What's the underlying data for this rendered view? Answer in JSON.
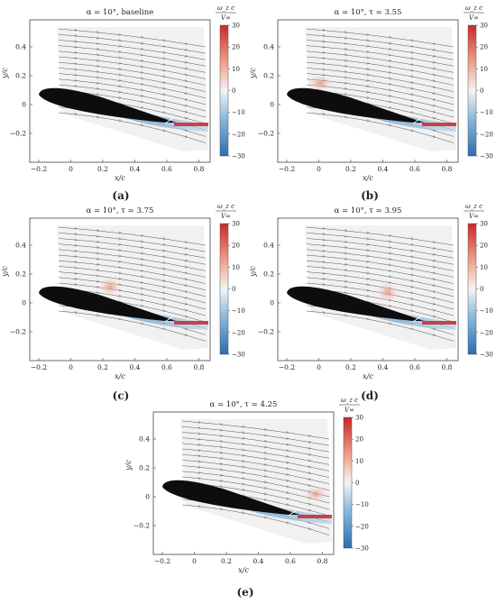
{
  "colorbar": {
    "label_top": "ω_z c",
    "label_bottom": "V∞",
    "ticks": [
      "30",
      "20",
      "10",
      "0",
      "−10",
      "−20",
      "−30"
    ],
    "color_high": "#c8282c",
    "color_mid": "#f4f4f4",
    "color_low": "#2a6db0"
  },
  "axes": {
    "xlabel": "x/c",
    "ylabel": "y/c",
    "xticks": [
      "−0.2",
      "0",
      "0.2",
      "0.4",
      "0.6",
      "0.8"
    ],
    "yticks": [
      "0.4",
      "0.2",
      "0",
      "−0.2"
    ]
  },
  "panels": [
    {
      "title": "α = 10°, baseline",
      "caption": "(a)"
    },
    {
      "title": "α = 10°, τ = 3.55",
      "caption": "(b)"
    },
    {
      "title": "α = 10°, τ = 3.75",
      "caption": "(c)"
    },
    {
      "title": "α = 10°, τ = 3.95",
      "caption": "(d)"
    },
    {
      "title": "α = 10°, τ = 4.25",
      "caption": "(e)"
    }
  ]
}
